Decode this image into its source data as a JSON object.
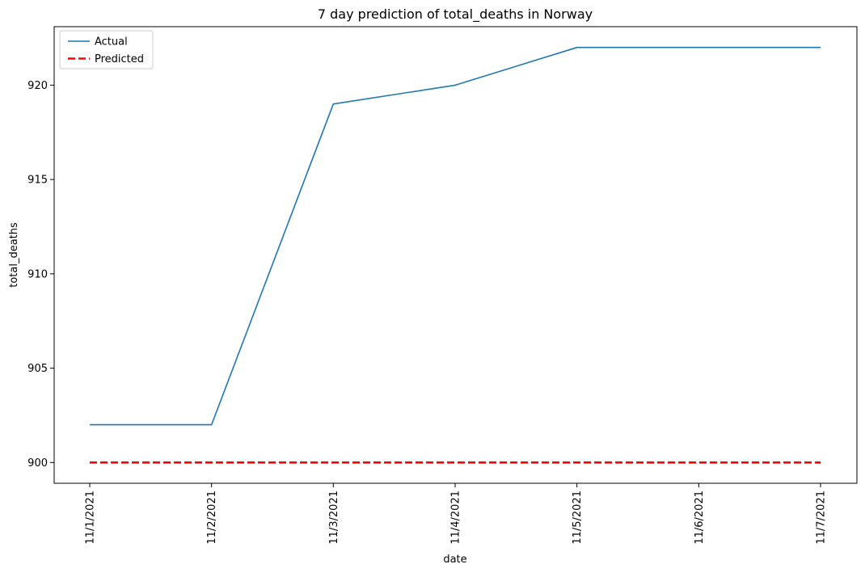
{
  "chart_data": {
    "type": "line",
    "title": "7 day prediction of total_deaths in Norway",
    "xlabel": "date",
    "ylabel": "total_deaths",
    "categories": [
      "11/1/2021",
      "11/2/2021",
      "11/3/2021",
      "11/4/2021",
      "11/5/2021",
      "11/6/2021",
      "11/7/2021"
    ],
    "ylim": [
      898.9,
      923.1
    ],
    "yticks": [
      900,
      905,
      910,
      915,
      920
    ],
    "grid": false,
    "legend_position": "top-left",
    "series": [
      {
        "name": "Actual",
        "values": [
          902,
          902,
          919,
          920,
          922,
          922,
          922
        ],
        "color": "#1f77b4",
        "style": "solid"
      },
      {
        "name": "Predicted",
        "values": [
          900,
          900,
          900,
          900,
          900,
          900,
          900
        ],
        "color": "#ff0000",
        "style": "dashed"
      }
    ]
  }
}
